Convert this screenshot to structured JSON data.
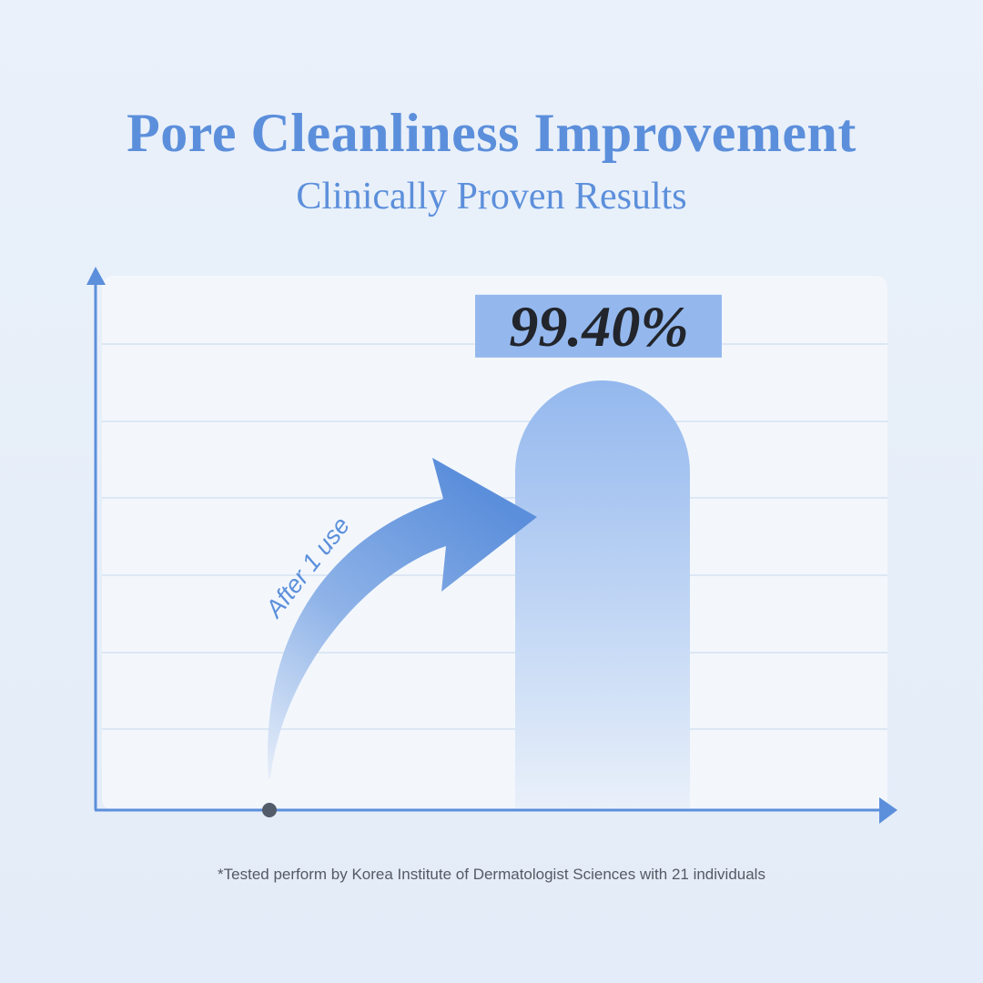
{
  "header": {
    "title": "Pore Cleanliness Improvement",
    "subtitle": "Clinically Proven Results"
  },
  "chart_data": {
    "type": "bar",
    "title": "Pore Cleanliness Improvement",
    "subtitle": "Clinically Proven Results",
    "categories": [
      "After 1 use"
    ],
    "values": [
      99.4
    ],
    "data_labels": [
      "99.40%"
    ],
    "annotations": [
      "After 1 use"
    ],
    "ylim": [
      0,
      125
    ],
    "grid": true,
    "colors": {
      "bar": "#94b8ee",
      "arrow": "#5c8fdb",
      "axis": "#5c8fdb",
      "label_box": "#94b8ee"
    }
  },
  "footnote": "*Tested perform by Korea Institute of Dermatologist Sciences with 21 individuals"
}
